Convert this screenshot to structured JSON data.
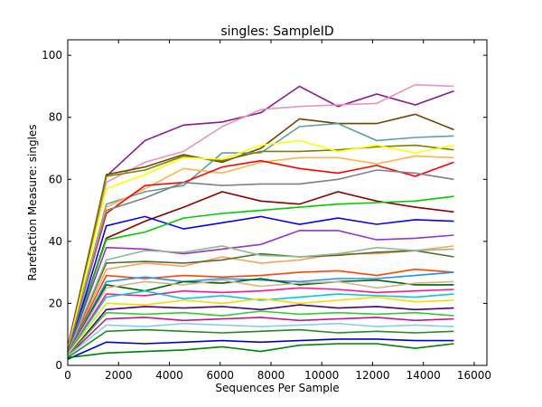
{
  "chart_data": {
    "type": "line",
    "title": "singles: SampleID",
    "xlabel": "Sequences Per Sample",
    "ylabel": "Rarefaction Measure: singles",
    "xlim": [
      0,
      16500
    ],
    "ylim": [
      0,
      105
    ],
    "x_ticks": [
      "0",
      "2000",
      "4000",
      "6000",
      "8000",
      "10000",
      "12000",
      "14000",
      "16000"
    ],
    "y_ticks": [
      "0",
      "20",
      "40",
      "60",
      "80",
      "100"
    ],
    "grid": false,
    "legend": "none",
    "x": [
      0,
      1520,
      3040,
      4560,
      6080,
      7600,
      9120,
      10640,
      12160,
      13680,
      15200
    ],
    "series": [
      {
        "color": "#8b1a8b",
        "values": [
          6,
          61,
          72.5,
          77.5,
          78.5,
          81.5,
          90,
          83.5,
          87.5,
          84,
          88.5
        ]
      },
      {
        "color": "#ef8fc3",
        "values": [
          5,
          59,
          65.5,
          69,
          77,
          82.5,
          83.5,
          84,
          84.5,
          90.5,
          90
        ]
      },
      {
        "color": "#6b4400",
        "values": [
          5,
          61.5,
          64,
          68,
          65.5,
          70,
          79.5,
          78,
          78,
          81,
          76
        ]
      },
      {
        "color": "#5f9ea0",
        "values": [
          5,
          52,
          56,
          58,
          68.5,
          68.5,
          77,
          78,
          72.5,
          73.5,
          74
        ]
      },
      {
        "color": "#808000",
        "values": [
          4.5,
          61,
          63,
          67.5,
          66,
          69,
          69,
          69.5,
          70.5,
          71,
          69.5
        ]
      },
      {
        "color": "#ffff00",
        "values": [
          5,
          57,
          61.5,
          67,
          66.5,
          71,
          72.5,
          69,
          71,
          68.5,
          71
        ]
      },
      {
        "color": "#ffb347",
        "values": [
          4,
          51,
          57,
          63.5,
          62,
          65.5,
          67,
          67,
          65,
          67.5,
          67
        ]
      },
      {
        "color": "#ff0000",
        "values": [
          4.5,
          49,
          58,
          59,
          64,
          66,
          63.5,
          62,
          64.5,
          61,
          65.5
        ]
      },
      {
        "color": "#808080",
        "values": [
          4,
          50,
          54,
          59,
          58,
          58.5,
          58.5,
          60,
          63,
          62,
          60
        ]
      },
      {
        "color": "#8b0000",
        "values": [
          4,
          41,
          46.5,
          51,
          56,
          53,
          52,
          56,
          53,
          51,
          49.5
        ]
      },
      {
        "color": "#0000ff",
        "values": [
          3.5,
          45,
          48,
          44,
          46,
          48,
          45.5,
          47.5,
          45.5,
          47,
          46.5
        ]
      },
      {
        "color": "#00cc00",
        "values": [
          4,
          40.5,
          43,
          47.5,
          49,
          50,
          51,
          52,
          52.5,
          53,
          54.5
        ]
      },
      {
        "color": "#9932cc",
        "values": [
          4,
          38,
          37.5,
          36,
          37.5,
          39,
          43.5,
          43.5,
          40.5,
          41,
          42
        ]
      },
      {
        "color": "#f4a460",
        "values": [
          4,
          31,
          33,
          32,
          35,
          33,
          34,
          36,
          36,
          37,
          38.5
        ]
      },
      {
        "color": "#556b2f",
        "values": [
          4,
          33,
          33.5,
          33,
          34,
          36,
          35,
          35.5,
          36.5,
          37,
          35
        ]
      },
      {
        "color": "#8fbc8f",
        "values": [
          4,
          34,
          37,
          36.5,
          38.5,
          35.5,
          35,
          36,
          38,
          37,
          37.5
        ]
      },
      {
        "color": "#ff4500",
        "values": [
          4,
          29,
          28,
          29,
          28.5,
          29,
          30,
          30.5,
          29,
          31,
          30
        ]
      },
      {
        "color": "#1e90ff",
        "values": [
          4,
          27,
          28.5,
          27,
          28,
          27.5,
          27,
          28,
          28,
          29,
          30
        ]
      },
      {
        "color": "#006400",
        "values": [
          3.5,
          26,
          24,
          27,
          26.5,
          28,
          26,
          27,
          27.5,
          26,
          26
        ]
      },
      {
        "color": "#d2b48c",
        "values": [
          3.5,
          25,
          27,
          26,
          27.5,
          25.5,
          26.5,
          27,
          25,
          26.5,
          27
        ]
      },
      {
        "color": "#ff1493",
        "values": [
          3.5,
          23,
          22.5,
          24,
          23.5,
          24,
          25,
          24.5,
          23.5,
          24,
          24.5
        ]
      },
      {
        "color": "#00ced1",
        "values": [
          3.5,
          22,
          24,
          21.5,
          22.5,
          21,
          22,
          23,
          22.5,
          22,
          23
        ]
      },
      {
        "color": "#ffd700",
        "values": [
          3.5,
          20,
          19.5,
          21,
          20,
          21.5,
          20,
          21,
          22,
          20.5,
          21
        ]
      },
      {
        "color": "#4b0082",
        "values": [
          3,
          18,
          19,
          18.5,
          19,
          18,
          19.5,
          18.5,
          19,
          18,
          18.5
        ]
      },
      {
        "color": "#32cd32",
        "values": [
          3,
          17,
          16.5,
          17,
          16,
          17.5,
          16.5,
          17,
          16.5,
          17,
          16
        ]
      },
      {
        "color": "#c71585",
        "values": [
          3,
          15,
          15.5,
          14.5,
          15,
          15.5,
          14.5,
          15,
          15.5,
          14.5,
          15
        ]
      },
      {
        "color": "#87ceeb",
        "values": [
          3,
          13,
          12.5,
          13.5,
          13,
          12.5,
          13,
          13.5,
          12.5,
          13,
          12.5
        ]
      },
      {
        "color": "#228b22",
        "values": [
          2.5,
          11,
          11.5,
          11,
          10.5,
          11,
          11.5,
          10.5,
          11,
          10.5,
          11
        ]
      },
      {
        "color": "#0000cd",
        "values": [
          2,
          7.5,
          7,
          7.5,
          8,
          7.5,
          8,
          8.5,
          8.5,
          8,
          8
        ]
      },
      {
        "color": "#008000",
        "values": [
          2.5,
          4,
          4.5,
          5,
          6,
          4.5,
          6.5,
          7,
          7,
          5.5,
          7
        ]
      }
    ]
  }
}
